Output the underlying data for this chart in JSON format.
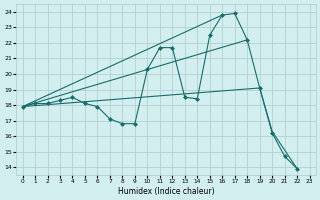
{
  "xlabel": "Humidex (Indice chaleur)",
  "bg_color": "#d2eeee",
  "grid_color": "#aacccc",
  "line_color": "#1a6b6b",
  "xlim": [
    -0.5,
    23.5
  ],
  "ylim": [
    13.5,
    24.5
  ],
  "xticks": [
    0,
    1,
    2,
    3,
    4,
    5,
    6,
    7,
    8,
    9,
    10,
    11,
    12,
    13,
    14,
    15,
    16,
    17,
    18,
    19,
    20,
    21,
    22,
    23
  ],
  "yticks": [
    14,
    15,
    16,
    17,
    18,
    19,
    20,
    21,
    22,
    23,
    24
  ],
  "series": [
    {
      "x": [
        0,
        1,
        2,
        3,
        4,
        5,
        6,
        7,
        8,
        9,
        10,
        11,
        12,
        13,
        14,
        15,
        16,
        17,
        18,
        19,
        20,
        21,
        22
      ],
      "y": [
        17.9,
        18.1,
        18.1,
        18.3,
        18.5,
        18.1,
        17.9,
        17.1,
        16.8,
        16.8,
        20.3,
        21.7,
        21.7,
        18.5,
        18.4,
        22.5,
        23.8,
        23.9,
        22.2,
        19.1,
        16.2,
        14.7,
        13.9
      ],
      "marker": true
    },
    {
      "comment": "straight line from (0,17.9) to (18,22.2)",
      "x": [
        0,
        18
      ],
      "y": [
        17.9,
        22.2
      ],
      "marker": false
    },
    {
      "comment": "line from (0,17.9) going to (19,19.1) then drops to (20,16.3) to (22,13.9)",
      "x": [
        0,
        19,
        20,
        22
      ],
      "y": [
        17.9,
        19.1,
        16.3,
        13.9
      ],
      "marker": false
    },
    {
      "comment": "line from (0,17.9) to (16,23.8)",
      "x": [
        0,
        16
      ],
      "y": [
        17.9,
        23.8
      ],
      "marker": false
    }
  ]
}
